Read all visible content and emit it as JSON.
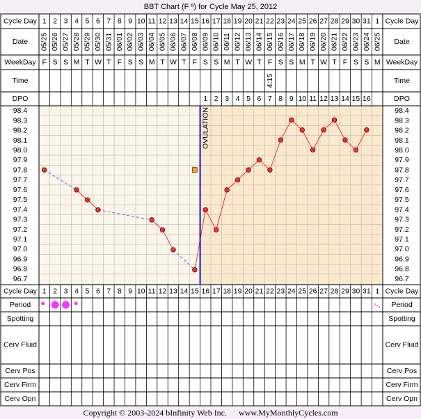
{
  "chart_data": {
    "type": "line",
    "title": "BBT Chart (F º) for Cycle May 25, 2012",
    "row_labels": {
      "cycle_day": "Cycle Day",
      "date": "Date",
      "weekday": "WeekDay",
      "time": "Time",
      "dpo": "DPO",
      "period": "Period",
      "spotting": "Spotting",
      "cerv_fluid": "Cerv Fluid",
      "cerv_pos": "Cerv Pos",
      "cerv_firm": "Cerv Firm",
      "cerv_opn": "Cerv Opn"
    },
    "cycle_days": [
      "1",
      "2",
      "3",
      "4",
      "5",
      "6",
      "7",
      "8",
      "9",
      "10",
      "11",
      "12",
      "13",
      "14",
      "15",
      "16",
      "17",
      "18",
      "19",
      "20",
      "21",
      "22",
      "23",
      "24",
      "25",
      "26",
      "27",
      "28",
      "29",
      "30",
      "31",
      "1"
    ],
    "dates": [
      "05/25",
      "05/26",
      "05/27",
      "05/28",
      "05/29",
      "05/30",
      "05/31",
      "06/01",
      "06/02",
      "06/03",
      "06/04",
      "06/05",
      "06/06",
      "06/07",
      "06/08",
      "06/09",
      "06/10",
      "06/11",
      "06/12",
      "06/13",
      "06/14",
      "06/15",
      "06/16",
      "06/17",
      "06/18",
      "06/19",
      "06/20",
      "06/21",
      "06/22",
      "06/23",
      "06/24",
      "06/25"
    ],
    "weekdays": [
      "F",
      "S",
      "S",
      "M",
      "T",
      "W",
      "T",
      "F",
      "S",
      "S",
      "M",
      "T",
      "W",
      "T",
      "F",
      "S",
      "S",
      "M",
      "T",
      "W",
      "T",
      "F",
      "S",
      "S",
      "M",
      "T",
      "W",
      "T",
      "F",
      "S",
      "S",
      "M"
    ],
    "times": [
      "",
      "",
      "",
      "",
      "",
      "",
      "",
      "",
      "",
      "",
      "",
      "",
      "",
      "",
      "",
      "",
      "",
      "",
      "",
      "",
      "",
      "4:15",
      "",
      "",
      "",
      "",
      "",
      "",
      "",
      "",
      "",
      ""
    ],
    "dpo": [
      "",
      "",
      "",
      "",
      "",
      "",
      "",
      "",
      "",
      "",
      "",
      "",
      "",
      "",
      "",
      "1",
      "2",
      "3",
      "4",
      "5",
      "6",
      "7",
      "8",
      "9",
      "10",
      "11",
      "12",
      "13",
      "14",
      "15",
      "16",
      ""
    ],
    "y_ticks": [
      "98.4",
      "98.3",
      "98.2",
      "98.1",
      "98.0",
      "97.9",
      "97.8",
      "97.7",
      "97.6",
      "97.5",
      "97.4",
      "97.3",
      "97.2",
      "97.1",
      "97.0",
      "96.9",
      "96.8",
      "96.7"
    ],
    "ylim": [
      96.7,
      98.4
    ],
    "temps": [
      97.8,
      null,
      null,
      97.6,
      97.5,
      97.4,
      null,
      null,
      null,
      null,
      97.3,
      97.2,
      97.0,
      null,
      96.8,
      97.4,
      97.2,
      97.6,
      97.7,
      97.8,
      97.9,
      97.8,
      98.1,
      98.3,
      98.2,
      98.0,
      98.2,
      98.3,
      98.1,
      98.0,
      98.2,
      null
    ],
    "discarded": [
      {
        "day_index": 14,
        "value": 97.8
      }
    ],
    "ovulation_day_index": 15,
    "ovulation_label": "OVULATION",
    "period": [
      2,
      3,
      3,
      1,
      0,
      0,
      0,
      0,
      0,
      0,
      0,
      0,
      0,
      0,
      0,
      0,
      0,
      0,
      0,
      0,
      0,
      0,
      0,
      0,
      0,
      0,
      0,
      0,
      0,
      0,
      0,
      1
    ],
    "colors": {
      "follicular_bg": "#fbf6e9",
      "luteal_bg": "#fbe9cd",
      "grid": "#b9b9b9",
      "line": "#ee3333",
      "dashed": "#5566dd",
      "point_fill": "#ee3333",
      "discard": "#ff9933",
      "ovulation": "#1111cc",
      "period_dot": "#ff33ff"
    }
  },
  "footer": {
    "copyright": "Copyright © 2003-2024 bInfinity Web Inc.",
    "site": "www.MyMonthlyCycles.com"
  }
}
